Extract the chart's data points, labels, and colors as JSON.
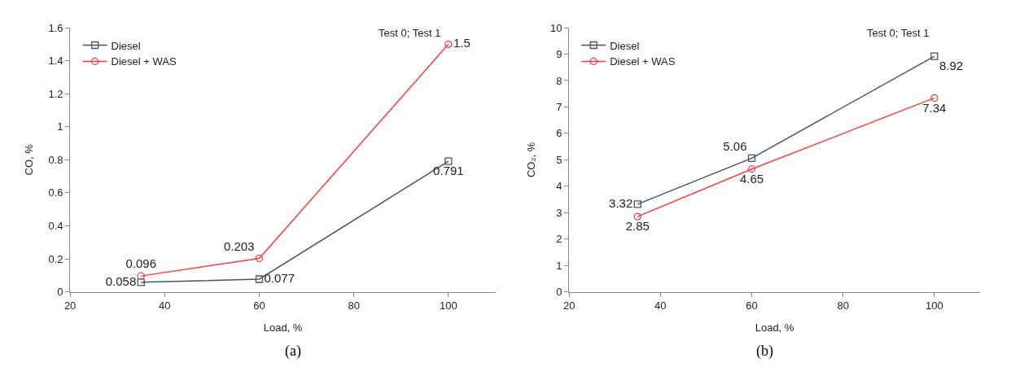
{
  "chart_data": [
    {
      "type": "line",
      "xlabel": "Load, %",
      "ylabel": "CO, %",
      "x": [
        35,
        60,
        100
      ],
      "xlim": [
        20,
        110
      ],
      "xticks": [
        20,
        40,
        60,
        80,
        100
      ],
      "ylim": [
        0,
        1.6
      ],
      "yticks": [
        0,
        0.2,
        0.4,
        0.6,
        0.8,
        1,
        1.2,
        1.4,
        1.6
      ],
      "legend": "top left",
      "data_labels": true,
      "annotations": [
        "Test 0; Test 1",
        "(a)"
      ],
      "series": [
        {
          "name": "Diesel",
          "color": "#44546a",
          "marker": "square",
          "values": [
            0.058,
            0.077,
            0.791
          ]
        },
        {
          "name": "Diesel + WAS",
          "color": "#ff3b3b",
          "marker": "circle",
          "values": [
            0.096,
            0.203,
            1.5
          ]
        }
      ]
    },
    {
      "type": "line",
      "xlabel": "Load, %",
      "ylabel": "CO₂, %",
      "x": [
        35,
        60,
        100
      ],
      "xlim": [
        20,
        110
      ],
      "xticks": [
        20,
        40,
        60,
        80,
        100
      ],
      "ylim": [
        0,
        10
      ],
      "yticks": [
        0,
        1,
        2,
        3,
        4,
        5,
        6,
        7,
        8,
        9,
        10
      ],
      "legend": "top left",
      "data_labels": true,
      "annotations": [
        "Test 0; Test 1",
        "(b)"
      ],
      "series": [
        {
          "name": "Diesel",
          "color": "#44546a",
          "marker": "square",
          "values": [
            3.32,
            5.06,
            8.92
          ]
        },
        {
          "name": "Diesel + WAS",
          "color": "#ff3b3b",
          "marker": "circle",
          "values": [
            2.85,
            4.65,
            7.34
          ]
        }
      ]
    }
  ]
}
